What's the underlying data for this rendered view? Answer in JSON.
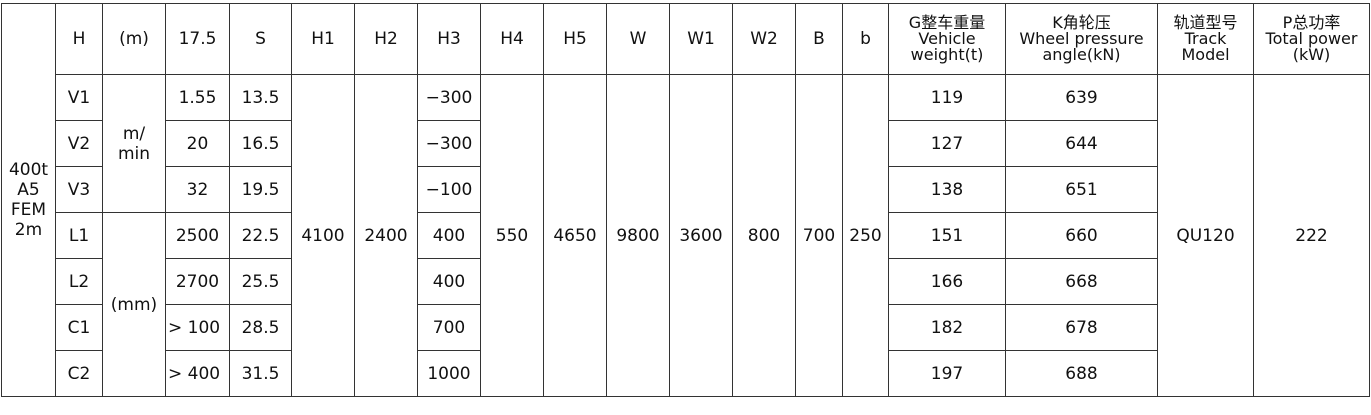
{
  "header": {
    "model": "400t A5 FEM 2m",
    "cols": [
      "H",
      "(m)",
      "17.5",
      "S",
      "H1",
      "H2",
      "H3",
      "H4",
      "H5",
      "W",
      "W1",
      "W2",
      "B",
      "b"
    ],
    "vehicle_weight": [
      "G整车重量",
      "Vehicle",
      "weight(t)"
    ],
    "wheel_pressure": [
      "K角轮压",
      "Wheel pressure",
      "angle(kN)"
    ],
    "track_model": [
      "轨道型号",
      "Track",
      "Model"
    ],
    "total_power": [
      "P总功率",
      "Total power",
      "(kW)"
    ]
  },
  "units": {
    "speed": "m/ min",
    "length": "(mm)"
  },
  "shared": {
    "H1": "4100",
    "H2": "2400",
    "H4": "550",
    "H5": "4650",
    "W": "9800",
    "W1": "3600",
    "W2": "800",
    "B": "700",
    "b": "250",
    "track": "QU120",
    "power": "222"
  },
  "rows": [
    {
      "label": "V1",
      "v": "1.55",
      "s": "13.5",
      "h3": "−300",
      "g": "119",
      "k": "639"
    },
    {
      "label": "V2",
      "v": "20",
      "s": "16.5",
      "h3": "−300",
      "g": "127",
      "k": "644"
    },
    {
      "label": "V3",
      "v": "32",
      "s": "19.5",
      "h3": "−100",
      "g": "138",
      "k": "651"
    },
    {
      "label": "L1",
      "v": "2500",
      "s": "22.5",
      "h3": "400",
      "g": "151",
      "k": "660"
    },
    {
      "label": "L2",
      "v": "2700",
      "s": "25.5",
      "h3": "400",
      "g": "166",
      "k": "668"
    },
    {
      "label": "C1",
      "v": "> 100",
      "s": "28.5",
      "h3": "700",
      "g": "182",
      "k": "678"
    },
    {
      "label": "C2",
      "v": "> 400",
      "s": "31.5",
      "h3": "1000",
      "g": "197",
      "k": "688"
    }
  ]
}
